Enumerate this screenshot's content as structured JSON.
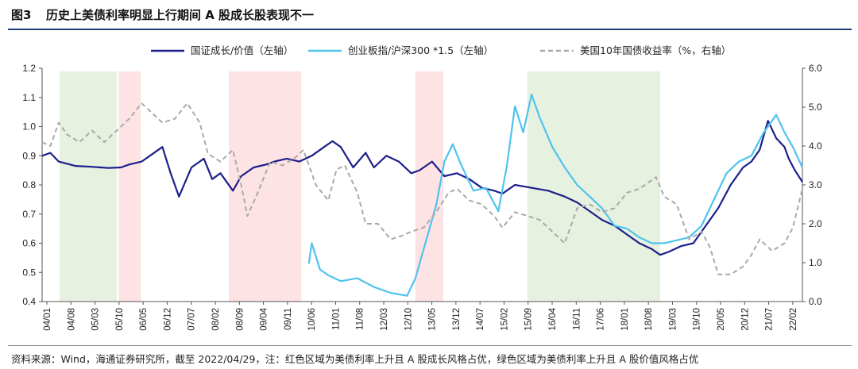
{
  "header": {
    "figure_label": "图3",
    "title": "历史上美债利率明显上行期间 A 股成长股表现不一"
  },
  "footer": {
    "source": "资料来源：Wind，海通证券研究所，截至 2022/04/29，注：红色区域为美债利率上升且 A 股成长风格占优，绿色区域为美债利率上升且 A 股价值风格占优"
  },
  "chart_data": {
    "type": "line",
    "x_range": [
      2004.0,
      2022.33
    ],
    "y_left": {
      "min": 0.4,
      "max": 1.2,
      "ticks": [
        "0.4",
        "0.5",
        "0.6",
        "0.7",
        "0.8",
        "0.9",
        "1.0",
        "1.1",
        "1.2"
      ]
    },
    "y_right": {
      "min": 0.0,
      "max": 6.0,
      "ticks": [
        "0.0",
        "1.0",
        "2.0",
        "3.0",
        "4.0",
        "5.0",
        "6.0"
      ]
    },
    "x_tick_labels": [
      "04/01",
      "04/08",
      "05/03",
      "05/10",
      "06/05",
      "06/12",
      "07/07",
      "08/02",
      "08/09",
      "09/04",
      "09/11",
      "10/06",
      "11/01",
      "11/08",
      "12/03",
      "12/10",
      "13/05",
      "13/12",
      "14/07",
      "15/02",
      "15/09",
      "16/04",
      "16/11",
      "17/06",
      "18/01",
      "18/08",
      "19/03",
      "19/10",
      "20/05",
      "20/12",
      "21/07",
      "22/02"
    ],
    "shaded_regions": [
      {
        "color": "green",
        "start": 2004.42,
        "end": 2005.8
      },
      {
        "color": "red",
        "start": 2005.85,
        "end": 2006.38
      },
      {
        "color": "red",
        "start": 2008.5,
        "end": 2010.25
      },
      {
        "color": "red",
        "start": 2013.0,
        "end": 2013.67
      },
      {
        "color": "green",
        "start": 2015.7,
        "end": 2018.9
      }
    ],
    "series": [
      {
        "name": "国证成长/价值（左轴）",
        "axis": "left",
        "color": "#1c1f8a",
        "style": "solid",
        "points": [
          [
            2004.0,
            0.9
          ],
          [
            2004.2,
            0.91
          ],
          [
            2004.4,
            0.88
          ],
          [
            2004.8,
            0.865
          ],
          [
            2005.2,
            0.862
          ],
          [
            2005.6,
            0.858
          ],
          [
            2005.9,
            0.86
          ],
          [
            2006.1,
            0.87
          ],
          [
            2006.4,
            0.88
          ],
          [
            2006.6,
            0.9
          ],
          [
            2006.9,
            0.93
          ],
          [
            2007.1,
            0.84
          ],
          [
            2007.3,
            0.76
          ],
          [
            2007.6,
            0.86
          ],
          [
            2007.9,
            0.89
          ],
          [
            2008.1,
            0.82
          ],
          [
            2008.3,
            0.84
          ],
          [
            2008.6,
            0.78
          ],
          [
            2008.8,
            0.83
          ],
          [
            2009.1,
            0.86
          ],
          [
            2009.4,
            0.87
          ],
          [
            2009.6,
            0.88
          ],
          [
            2009.9,
            0.89
          ],
          [
            2010.2,
            0.88
          ],
          [
            2010.5,
            0.9
          ],
          [
            2010.8,
            0.93
          ],
          [
            2011.0,
            0.95
          ],
          [
            2011.2,
            0.93
          ],
          [
            2011.5,
            0.86
          ],
          [
            2011.8,
            0.91
          ],
          [
            2012.0,
            0.86
          ],
          [
            2012.3,
            0.9
          ],
          [
            2012.6,
            0.88
          ],
          [
            2012.9,
            0.84
          ],
          [
            2013.1,
            0.85
          ],
          [
            2013.4,
            0.88
          ],
          [
            2013.7,
            0.83
          ],
          [
            2014.0,
            0.84
          ],
          [
            2014.3,
            0.82
          ],
          [
            2014.6,
            0.79
          ],
          [
            2014.9,
            0.78
          ],
          [
            2015.1,
            0.77
          ],
          [
            2015.4,
            0.8
          ],
          [
            2015.8,
            0.79
          ],
          [
            2016.2,
            0.78
          ],
          [
            2016.6,
            0.76
          ],
          [
            2016.9,
            0.74
          ],
          [
            2017.2,
            0.71
          ],
          [
            2017.5,
            0.68
          ],
          [
            2017.8,
            0.66
          ],
          [
            2018.1,
            0.63
          ],
          [
            2018.4,
            0.6
          ],
          [
            2018.7,
            0.58
          ],
          [
            2018.9,
            0.56
          ],
          [
            2019.1,
            0.57
          ],
          [
            2019.4,
            0.59
          ],
          [
            2019.7,
            0.6
          ],
          [
            2020.0,
            0.66
          ],
          [
            2020.3,
            0.72
          ],
          [
            2020.6,
            0.8
          ],
          [
            2020.9,
            0.86
          ],
          [
            2021.1,
            0.88
          ],
          [
            2021.3,
            0.92
          ],
          [
            2021.5,
            1.02
          ],
          [
            2021.7,
            0.96
          ],
          [
            2021.9,
            0.93
          ],
          [
            2022.0,
            0.89
          ],
          [
            2022.15,
            0.85
          ],
          [
            2022.33,
            0.81
          ]
        ]
      },
      {
        "name": "创业板指/沪深300 *1.5（左轴）",
        "axis": "left",
        "color": "#4fc3ee",
        "style": "solid",
        "points": [
          [
            2010.43,
            0.53
          ],
          [
            2010.5,
            0.6
          ],
          [
            2010.7,
            0.51
          ],
          [
            2010.9,
            0.49
          ],
          [
            2011.2,
            0.47
          ],
          [
            2011.6,
            0.48
          ],
          [
            2012.0,
            0.45
          ],
          [
            2012.4,
            0.43
          ],
          [
            2012.8,
            0.42
          ],
          [
            2013.0,
            0.48
          ],
          [
            2013.2,
            0.58
          ],
          [
            2013.5,
            0.73
          ],
          [
            2013.7,
            0.88
          ],
          [
            2013.9,
            0.94
          ],
          [
            2014.1,
            0.87
          ],
          [
            2014.4,
            0.78
          ],
          [
            2014.7,
            0.79
          ],
          [
            2015.0,
            0.71
          ],
          [
            2015.2,
            0.86
          ],
          [
            2015.4,
            1.07
          ],
          [
            2015.6,
            0.98
          ],
          [
            2015.8,
            1.11
          ],
          [
            2016.0,
            1.03
          ],
          [
            2016.3,
            0.93
          ],
          [
            2016.6,
            0.86
          ],
          [
            2016.9,
            0.8
          ],
          [
            2017.2,
            0.76
          ],
          [
            2017.5,
            0.72
          ],
          [
            2017.8,
            0.66
          ],
          [
            2018.1,
            0.65
          ],
          [
            2018.4,
            0.62
          ],
          [
            2018.7,
            0.6
          ],
          [
            2019.0,
            0.6
          ],
          [
            2019.3,
            0.61
          ],
          [
            2019.6,
            0.62
          ],
          [
            2019.9,
            0.66
          ],
          [
            2020.2,
            0.75
          ],
          [
            2020.5,
            0.84
          ],
          [
            2020.8,
            0.88
          ],
          [
            2021.1,
            0.9
          ],
          [
            2021.4,
            0.98
          ],
          [
            2021.7,
            1.04
          ],
          [
            2021.9,
            0.98
          ],
          [
            2022.1,
            0.93
          ],
          [
            2022.33,
            0.86
          ]
        ]
      },
      {
        "name": "美国10年国债收益率（%，右轴）",
        "axis": "right",
        "color": "#a9a9a9",
        "style": "dashed",
        "points": [
          [
            2004.0,
            4.1
          ],
          [
            2004.2,
            4.0
          ],
          [
            2004.4,
            4.6
          ],
          [
            2004.6,
            4.3
          ],
          [
            2004.9,
            4.1
          ],
          [
            2005.2,
            4.4
          ],
          [
            2005.5,
            4.1
          ],
          [
            2005.8,
            4.4
          ],
          [
            2006.1,
            4.7
          ],
          [
            2006.4,
            5.1
          ],
          [
            2006.6,
            4.9
          ],
          [
            2006.9,
            4.6
          ],
          [
            2007.2,
            4.7
          ],
          [
            2007.5,
            5.1
          ],
          [
            2007.8,
            4.6
          ],
          [
            2008.0,
            3.8
          ],
          [
            2008.3,
            3.6
          ],
          [
            2008.6,
            3.9
          ],
          [
            2008.8,
            3.0
          ],
          [
            2008.95,
            2.2
          ],
          [
            2009.2,
            2.8
          ],
          [
            2009.5,
            3.6
          ],
          [
            2009.8,
            3.5
          ],
          [
            2010.1,
            3.7
          ],
          [
            2010.3,
            3.9
          ],
          [
            2010.6,
            3.0
          ],
          [
            2010.9,
            2.6
          ],
          [
            2011.1,
            3.4
          ],
          [
            2011.3,
            3.5
          ],
          [
            2011.6,
            2.8
          ],
          [
            2011.8,
            2.0
          ],
          [
            2012.1,
            2.0
          ],
          [
            2012.4,
            1.6
          ],
          [
            2012.7,
            1.7
          ],
          [
            2012.9,
            1.8
          ],
          [
            2013.2,
            1.9
          ],
          [
            2013.5,
            2.3
          ],
          [
            2013.8,
            2.8
          ],
          [
            2014.0,
            2.9
          ],
          [
            2014.3,
            2.6
          ],
          [
            2014.6,
            2.5
          ],
          [
            2014.9,
            2.2
          ],
          [
            2015.1,
            1.9
          ],
          [
            2015.4,
            2.3
          ],
          [
            2015.7,
            2.2
          ],
          [
            2016.0,
            2.1
          ],
          [
            2016.3,
            1.8
          ],
          [
            2016.6,
            1.5
          ],
          [
            2016.9,
            2.4
          ],
          [
            2017.2,
            2.5
          ],
          [
            2017.5,
            2.3
          ],
          [
            2017.8,
            2.4
          ],
          [
            2018.1,
            2.8
          ],
          [
            2018.4,
            2.9
          ],
          [
            2018.8,
            3.2
          ],
          [
            2019.0,
            2.7
          ],
          [
            2019.3,
            2.5
          ],
          [
            2019.6,
            1.6
          ],
          [
            2019.9,
            1.8
          ],
          [
            2020.1,
            1.4
          ],
          [
            2020.3,
            0.7
          ],
          [
            2020.6,
            0.7
          ],
          [
            2020.9,
            0.9
          ],
          [
            2021.1,
            1.2
          ],
          [
            2021.3,
            1.6
          ],
          [
            2021.6,
            1.3
          ],
          [
            2021.9,
            1.5
          ],
          [
            2022.1,
            1.9
          ],
          [
            2022.33,
            2.9
          ]
        ]
      }
    ]
  }
}
